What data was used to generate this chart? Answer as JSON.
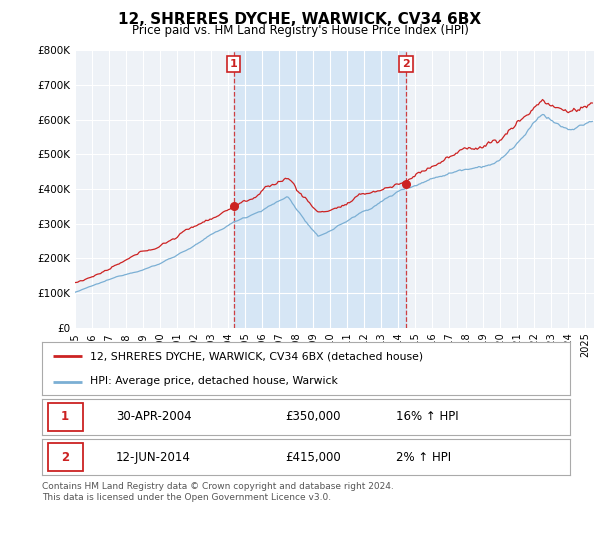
{
  "title": "12, SHRERES DYCHE, WARWICK, CV34 6BX",
  "subtitle": "Price paid vs. HM Land Registry's House Price Index (HPI)",
  "ylabel_ticks": [
    "£0",
    "£100K",
    "£200K",
    "£300K",
    "£400K",
    "£500K",
    "£600K",
    "£700K",
    "£800K"
  ],
  "ylim": [
    0,
    800000
  ],
  "xlim_start": 1995.0,
  "xlim_end": 2025.5,
  "hpi_color": "#7bafd4",
  "hpi_fill_color": "#d0e4f5",
  "price_color": "#cc2222",
  "sale1_date": 2004.33,
  "sale1_price": 350000,
  "sale2_date": 2014.45,
  "sale2_price": 415000,
  "legend_line1": "12, SHRERES DYCHE, WARWICK, CV34 6BX (detached house)",
  "legend_line2": "HPI: Average price, detached house, Warwick",
  "table_row1_date": "30-APR-2004",
  "table_row1_price": "£350,000",
  "table_row1_hpi": "16% ↑ HPI",
  "table_row2_date": "12-JUN-2014",
  "table_row2_price": "£415,000",
  "table_row2_hpi": "2% ↑ HPI",
  "footer": "Contains HM Land Registry data © Crown copyright and database right 2024.\nThis data is licensed under the Open Government Licence v3.0.",
  "background_color": "#ffffff",
  "plot_bg_color": "#eef2f7"
}
